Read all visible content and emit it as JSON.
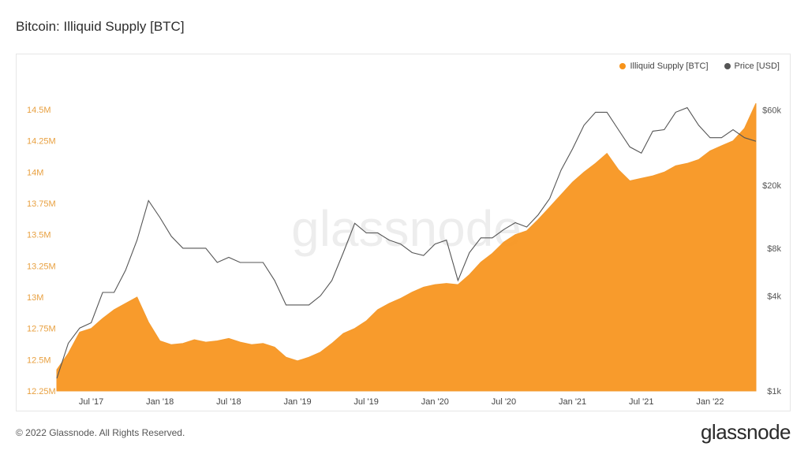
{
  "title": "Bitcoin: Illiquid Supply [BTC]",
  "footer": "© 2022 Glassnode. All Rights Reserved.",
  "brand": "glassnode",
  "watermark": "glassnode",
  "colors": {
    "supply": "#f7931a",
    "price": "#555555",
    "supply_axis": "#e8a040"
  },
  "chart_data": {
    "type": "area",
    "title": "Bitcoin: Illiquid Supply [BTC]",
    "x_ticks": [
      "Jul '17",
      "Jan '18",
      "Jul '18",
      "Jan '19",
      "Jul '19",
      "Jan '20",
      "Jul '20",
      "Jan '21",
      "Jul '21",
      "Jan '22"
    ],
    "x_range": [
      "2017-04",
      "2022-05"
    ],
    "y_left": {
      "ticks": [
        "12.25M",
        "12.5M",
        "12.75M",
        "13M",
        "13.25M",
        "13.5M",
        "13.75M",
        "14M",
        "14.25M",
        "14.5M"
      ],
      "range": [
        12.25,
        14.62
      ],
      "unit": "M BTC"
    },
    "y_right": {
      "ticks": [
        "$1k",
        "$4k",
        "$8k",
        "$20k",
        "$60k"
      ],
      "scale": "log",
      "range": [
        1000,
        75000
      ]
    },
    "legend": {
      "placement": "top-right",
      "items": [
        "Illiquid Supply [BTC]",
        "Price [USD]"
      ]
    },
    "series": [
      {
        "name": "Illiquid Supply [BTC]",
        "kind": "area",
        "x": [
          "2017-04",
          "2017-05",
          "2017-06",
          "2017-07",
          "2017-08",
          "2017-09",
          "2017-10",
          "2017-11",
          "2017-12",
          "2018-01",
          "2018-02",
          "2018-03",
          "2018-04",
          "2018-05",
          "2018-06",
          "2018-07",
          "2018-08",
          "2018-09",
          "2018-10",
          "2018-11",
          "2018-12",
          "2019-01",
          "2019-02",
          "2019-03",
          "2019-04",
          "2019-05",
          "2019-06",
          "2019-07",
          "2019-08",
          "2019-09",
          "2019-10",
          "2019-11",
          "2019-12",
          "2020-01",
          "2020-02",
          "2020-03",
          "2020-04",
          "2020-05",
          "2020-06",
          "2020-07",
          "2020-08",
          "2020-09",
          "2020-10",
          "2020-11",
          "2020-12",
          "2021-01",
          "2021-02",
          "2021-03",
          "2021-04",
          "2021-05",
          "2021-06",
          "2021-07",
          "2021-08",
          "2021-09",
          "2021-10",
          "2021-11",
          "2021-12",
          "2022-01",
          "2022-02",
          "2022-03",
          "2022-04",
          "2022-05"
        ],
        "values": [
          12.42,
          12.55,
          12.72,
          12.75,
          12.83,
          12.9,
          12.95,
          13.0,
          12.8,
          12.65,
          12.62,
          12.63,
          12.66,
          12.64,
          12.65,
          12.67,
          12.64,
          12.62,
          12.63,
          12.6,
          12.52,
          12.49,
          12.52,
          12.56,
          12.63,
          12.71,
          12.75,
          12.81,
          12.9,
          12.95,
          12.99,
          13.04,
          13.08,
          13.1,
          13.11,
          13.1,
          13.18,
          13.28,
          13.35,
          13.44,
          13.5,
          13.53,
          13.62,
          13.72,
          13.82,
          13.92,
          14.0,
          14.07,
          14.15,
          14.02,
          13.93,
          13.95,
          13.97,
          14.0,
          14.05,
          14.07,
          14.1,
          14.17,
          14.21,
          14.25,
          14.35,
          14.55
        ]
      },
      {
        "name": "Price [USD]",
        "kind": "line",
        "x": [
          "2017-04",
          "2017-05",
          "2017-06",
          "2017-07",
          "2017-08",
          "2017-09",
          "2017-10",
          "2017-11",
          "2017-12",
          "2018-01",
          "2018-02",
          "2018-03",
          "2018-04",
          "2018-05",
          "2018-06",
          "2018-07",
          "2018-08",
          "2018-09",
          "2018-10",
          "2018-11",
          "2018-12",
          "2019-01",
          "2019-02",
          "2019-03",
          "2019-04",
          "2019-05",
          "2019-06",
          "2019-07",
          "2019-08",
          "2019-09",
          "2019-10",
          "2019-11",
          "2019-12",
          "2020-01",
          "2020-02",
          "2020-03",
          "2020-04",
          "2020-05",
          "2020-06",
          "2020-07",
          "2020-08",
          "2020-09",
          "2020-10",
          "2020-11",
          "2020-12",
          "2021-01",
          "2021-02",
          "2021-03",
          "2021-04",
          "2021-05",
          "2021-06",
          "2021-07",
          "2021-08",
          "2021-09",
          "2021-10",
          "2021-11",
          "2021-12",
          "2022-01",
          "2022-02",
          "2022-03",
          "2022-04",
          "2022-05"
        ],
        "values": [
          1200,
          2000,
          2500,
          2700,
          4200,
          4200,
          5800,
          9000,
          16000,
          12500,
          9500,
          8000,
          8000,
          8000,
          6500,
          7000,
          6500,
          6500,
          6500,
          5000,
          3500,
          3500,
          3500,
          4000,
          5000,
          7500,
          11500,
          10000,
          10000,
          9000,
          8500,
          7500,
          7200,
          8500,
          9000,
          5000,
          7500,
          9300,
          9300,
          10500,
          11600,
          10900,
          13000,
          16500,
          25000,
          34000,
          48000,
          58000,
          58000,
          45000,
          35000,
          32000,
          44000,
          45000,
          58000,
          62000,
          48000,
          40000,
          40000,
          45000,
          40000,
          38000
        ]
      }
    ]
  }
}
